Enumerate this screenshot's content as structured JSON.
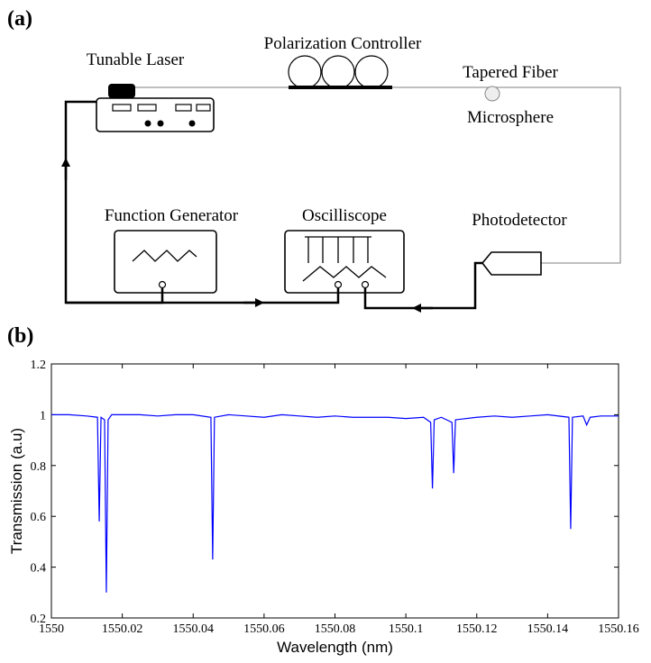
{
  "figure": {
    "panel_labels": [
      "(a)",
      "(b)"
    ]
  },
  "diagram": {
    "labels": {
      "laser": "Tunable Laser",
      "polarization": "Polarization Controller",
      "fiber": "Tapered Fiber",
      "sphere": "Microsphere",
      "generator": "Function Generator",
      "scope": "Oscilliscope",
      "detector": "Photodetector"
    }
  },
  "chart_data": {
    "type": "line",
    "xlabel": "Wavelength (nm)",
    "ylabel": "Transmission (a.u)",
    "x": [
      1550,
      1550.005,
      1550.01,
      1550.013,
      1550.0135,
      1550.014,
      1550.015,
      1550.0155,
      1550.016,
      1550.017,
      1550.02,
      1550.025,
      1550.03,
      1550.035,
      1550.04,
      1550.045,
      1550.0455,
      1550.046,
      1550.05,
      1550.055,
      1550.06,
      1550.065,
      1550.07,
      1550.075,
      1550.08,
      1550.085,
      1550.09,
      1550.095,
      1550.1,
      1550.105,
      1550.107,
      1550.1075,
      1550.108,
      1550.11,
      1550.113,
      1550.1135,
      1550.114,
      1550.12,
      1550.125,
      1550.13,
      1550.135,
      1550.14,
      1550.146,
      1550.1465,
      1550.147,
      1550.15,
      1550.151,
      1550.152,
      1550.155,
      1550.16
    ],
    "values": [
      1,
      1,
      0.995,
      0.99,
      0.58,
      0.99,
      0.98,
      0.3,
      0.98,
      1,
      1,
      1,
      0.995,
      1,
      1,
      0.99,
      0.43,
      0.99,
      1,
      0.995,
      0.99,
      1,
      0.995,
      0.99,
      0.995,
      0.99,
      0.99,
      0.99,
      0.985,
      0.99,
      0.97,
      0.71,
      0.98,
      0.99,
      0.97,
      0.77,
      0.98,
      0.99,
      0.995,
      0.99,
      0.995,
      1,
      0.99,
      0.55,
      0.99,
      0.995,
      0.96,
      0.99,
      0.995,
      0.995
    ],
    "color": "#0000ff",
    "xlim": [
      1550,
      1550.16
    ],
    "xticks": [
      1550,
      1550.02,
      1550.04,
      1550.06,
      1550.08,
      1550.1,
      1550.12,
      1550.14,
      1550.16
    ],
    "ylim": [
      0.2,
      1.2
    ],
    "yticks": [
      0.2,
      0.4,
      0.6,
      0.8,
      1,
      1.2
    ]
  }
}
